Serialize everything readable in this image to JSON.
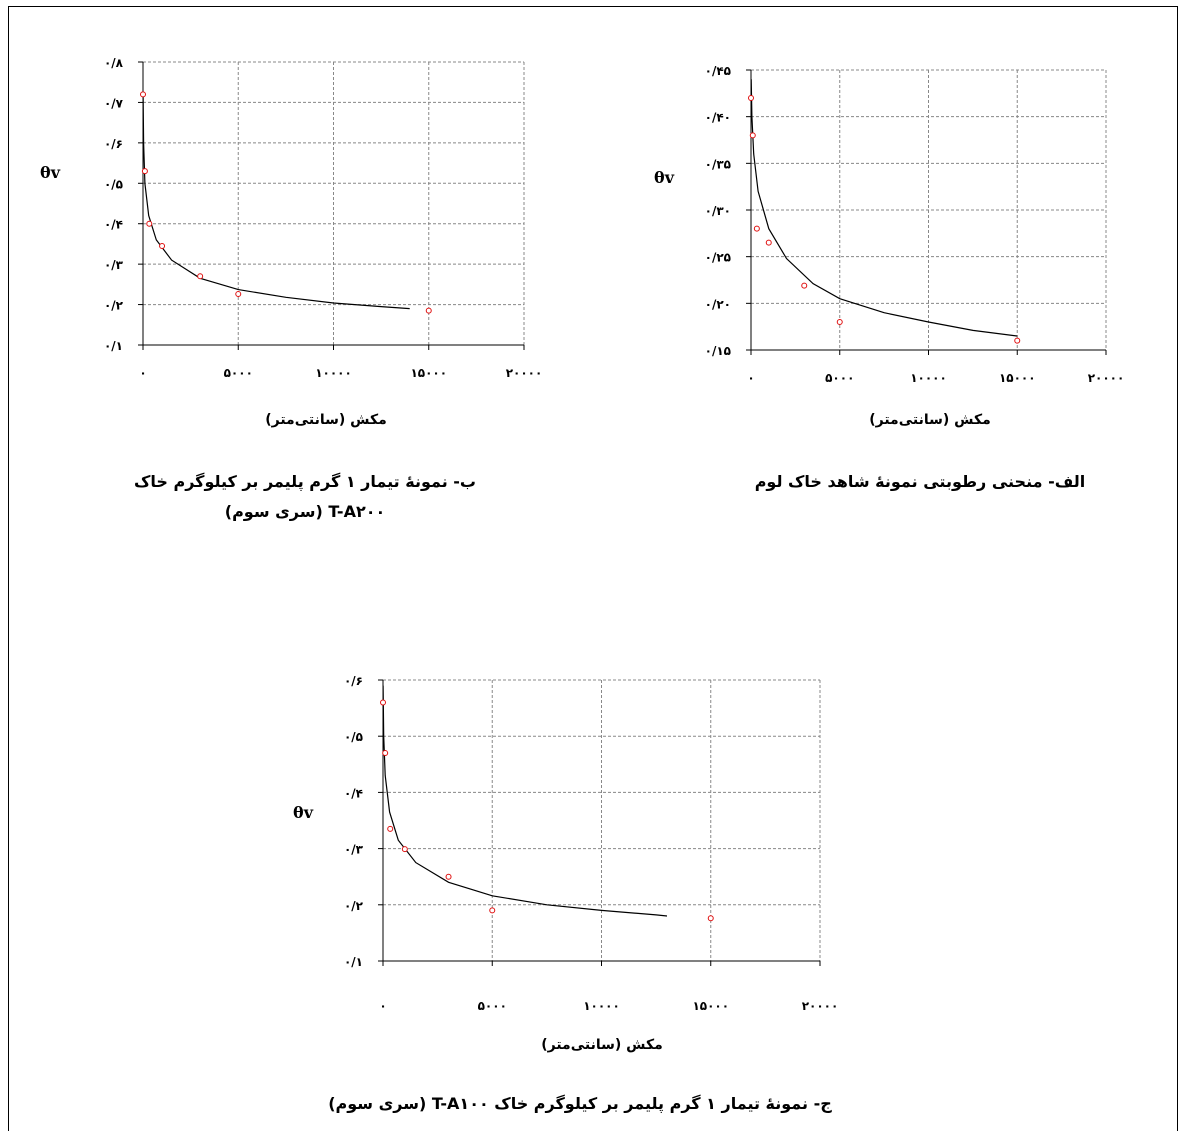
{
  "chart_data": [
    {
      "id": "alef",
      "type": "scatter",
      "caption": "الف- منحنی رطوبتی نمونهٔ شاهد خاک لوم",
      "xlabel": "مکش (سانتی‌متر)",
      "ylabel": "θv",
      "x_ticks": [
        "۰",
        "۵۰۰۰",
        "۱۰۰۰۰",
        "۱۵۰۰۰",
        "۲۰۰۰۰"
      ],
      "y_ticks": [
        "۰/۱۵",
        "۰/۲۰",
        "۰/۲۵",
        "۰/۳۰",
        "۰/۳۵",
        "۰/۴۰",
        "۰/۴۵"
      ],
      "xlim": [
        0,
        20000
      ],
      "ylim": [
        0.15,
        0.45
      ],
      "grid": true,
      "points": [
        {
          "x": 0,
          "y": 0.42
        },
        {
          "x": 100,
          "y": 0.38
        },
        {
          "x": 330,
          "y": 0.28
        },
        {
          "x": 1000,
          "y": 0.265
        },
        {
          "x": 3000,
          "y": 0.219
        },
        {
          "x": 5000,
          "y": 0.18
        },
        {
          "x": 15000,
          "y": 0.16
        }
      ],
      "curve": [
        [
          10,
          0.44
        ],
        [
          50,
          0.4
        ],
        [
          150,
          0.36
        ],
        [
          400,
          0.32
        ],
        [
          1000,
          0.28
        ],
        [
          2000,
          0.248
        ],
        [
          3500,
          0.221
        ],
        [
          5000,
          0.205
        ],
        [
          7500,
          0.19
        ],
        [
          10000,
          0.18
        ],
        [
          12500,
          0.171
        ],
        [
          15000,
          0.165
        ]
      ]
    },
    {
      "id": "be",
      "type": "scatter",
      "caption_line1": "ب- نمونهٔ تیمار ۱ گرم پلیمر بر کیلوگرم خاک",
      "caption_line2": "T-A۲۰۰ (سری سوم)",
      "xlabel": "مکش (سانتی‌متر)",
      "ylabel": "θv",
      "x_ticks": [
        "۰",
        "۵۰۰۰",
        "۱۰۰۰۰",
        "۱۵۰۰۰",
        "۲۰۰۰۰"
      ],
      "y_ticks": [
        "۰/۱",
        "۰/۲",
        "۰/۳",
        "۰/۴",
        "۰/۵",
        "۰/۶",
        "۰/۷",
        "۰/۸"
      ],
      "xlim": [
        0,
        20000
      ],
      "ylim": [
        0.1,
        0.8
      ],
      "grid": true,
      "points": [
        {
          "x": 0,
          "y": 0.72
        },
        {
          "x": 100,
          "y": 0.53
        },
        {
          "x": 330,
          "y": 0.4
        },
        {
          "x": 1000,
          "y": 0.345
        },
        {
          "x": 3000,
          "y": 0.27
        },
        {
          "x": 5000,
          "y": 0.226
        },
        {
          "x": 15000,
          "y": 0.185
        }
      ],
      "curve": [
        [
          5,
          0.72
        ],
        [
          30,
          0.6
        ],
        [
          100,
          0.5
        ],
        [
          300,
          0.42
        ],
        [
          700,
          0.36
        ],
        [
          1500,
          0.31
        ],
        [
          3000,
          0.265
        ],
        [
          5000,
          0.237
        ],
        [
          7500,
          0.218
        ],
        [
          10000,
          0.204
        ],
        [
          12500,
          0.195
        ],
        [
          14000,
          0.19
        ]
      ]
    },
    {
      "id": "jim",
      "type": "scatter",
      "caption": "ج- نمونهٔ تیمار ۱ گرم پلیمر بر کیلوگرم خاک T-A۱۰۰ (سری سوم)",
      "xlabel": "مکش (سانتی‌متر)",
      "ylabel": "θv",
      "x_ticks": [
        "۰",
        "۵۰۰۰",
        "۱۰۰۰۰",
        "۱۵۰۰۰",
        "۲۰۰۰۰"
      ],
      "y_ticks": [
        "۰/۱",
        "۰/۲",
        "۰/۳",
        "۰/۴",
        "۰/۵",
        "۰/۶"
      ],
      "xlim": [
        0,
        20000
      ],
      "ylim": [
        0.1,
        0.6
      ],
      "grid": true,
      "points": [
        {
          "x": 0,
          "y": 0.56
        },
        {
          "x": 100,
          "y": 0.47
        },
        {
          "x": 330,
          "y": 0.335
        },
        {
          "x": 1000,
          "y": 0.299
        },
        {
          "x": 3000,
          "y": 0.25
        },
        {
          "x": 5000,
          "y": 0.19
        },
        {
          "x": 15000,
          "y": 0.176
        }
      ],
      "curve": [
        [
          5,
          0.59
        ],
        [
          30,
          0.5
        ],
        [
          100,
          0.43
        ],
        [
          300,
          0.365
        ],
        [
          700,
          0.315
        ],
        [
          1500,
          0.275
        ],
        [
          3000,
          0.24
        ],
        [
          5000,
          0.216
        ],
        [
          7500,
          0.2
        ],
        [
          10000,
          0.19
        ],
        [
          12500,
          0.182
        ],
        [
          13000,
          0.18
        ]
      ]
    }
  ]
}
